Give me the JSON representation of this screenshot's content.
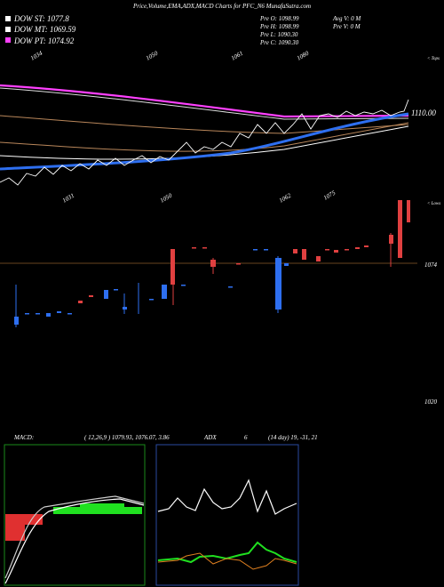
{
  "header": {
    "title": "Price,Volume,EMA,ADX,MACD Charts for PFC_N6  MunafaSutra.com"
  },
  "legend": [
    {
      "label": "DOW ST: 1077.8"
    },
    {
      "label": "DOW MT: 1069.59"
    },
    {
      "label": "DOW PT: 1074.92"
    }
  ],
  "quote": {
    "open": "Pre  O: 1098.99",
    "high": "Pre  H: 1098.99",
    "low": "Pre  L: 1090.30",
    "close": "Pre  C: 1090.30",
    "avg_volume": "Avg V: 0  M",
    "prev_volume": "Pre  V: 0  M"
  },
  "tops": {
    "title": "< Tops",
    "labels": [
      "1034",
      "1050",
      "1061",
      "1080"
    ]
  },
  "last_price": "1110.00",
  "lows": {
    "title": "< Lows",
    "labels": [
      "1031",
      "1050",
      "1062",
      "1075"
    ]
  },
  "levels": [
    "1074",
    "1020"
  ],
  "indicators": {
    "macd_title": "MACD:",
    "macd_values": "( 12,26,9 ) 1079.93, 1076.07, 3.86",
    "adx_title": "ADX",
    "adx_value": "6",
    "adx_values": "(14 day) 19, -31, 21"
  }
}
